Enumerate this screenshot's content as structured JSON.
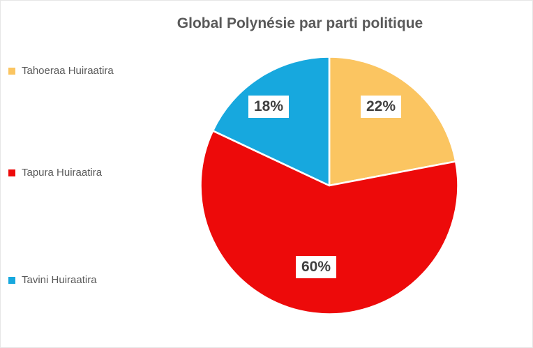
{
  "title": "Global Polynésie par parti politique",
  "chart_data": {
    "type": "pie",
    "title": "Global Polynésie par parti politique",
    "start_angle_deg": 0,
    "direction": "clockwise",
    "legend_position": "left",
    "slices": [
      {
        "label": "Tahoeraa Huiraatira",
        "value": 22,
        "pct_label": "22%",
        "color": "#FBC561"
      },
      {
        "label": "Tapura Huiraatira",
        "value": 60,
        "pct_label": "60%",
        "color": "#ED0A0A"
      },
      {
        "label": "Tavini Huiraatira",
        "value": 18,
        "pct_label": "18%",
        "color": "#17A8DE"
      }
    ],
    "slice_separator_color": "#FFFFFF",
    "title_color": "#595959",
    "legend_text_color": "#595959",
    "data_label_text_color": "#3F3F3F",
    "data_label_background": "#FFFFFF"
  }
}
